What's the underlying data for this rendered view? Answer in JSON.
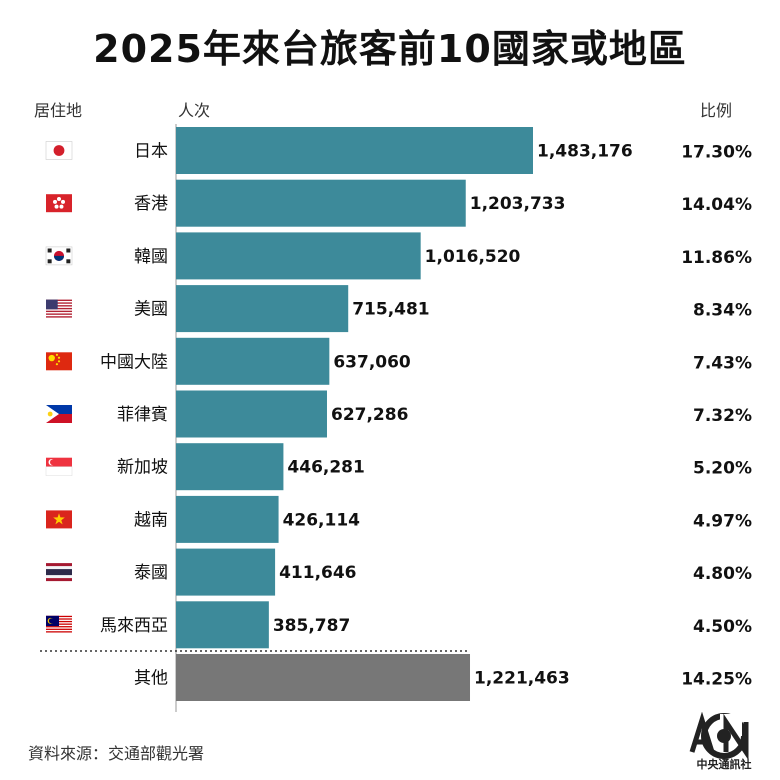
{
  "title": "2025年來台旅客前10國家或地區",
  "headers": {
    "country": "居住地",
    "count": "人次",
    "ratio": "比例"
  },
  "source": "資料來源：交通部觀光署",
  "logo_text": "中央通訊社",
  "colors": {
    "bar": "#3d8a9a",
    "other_bar": "#777777"
  },
  "chart_data": {
    "type": "bar",
    "orientation": "horizontal",
    "title": "2025年來台旅客前10國家或地區",
    "categories": [
      "日本",
      "香港",
      "韓國",
      "美國",
      "中國大陸",
      "菲律賓",
      "新加坡",
      "越南",
      "泰國",
      "馬來西亞",
      "其他"
    ],
    "values": [
      1483176,
      1203733,
      1016520,
      715481,
      637060,
      627286,
      446281,
      426114,
      411646,
      385787,
      1221463
    ],
    "value_labels": [
      "1,483,176",
      "1,203,733",
      "1,016,520",
      "715,481",
      "637,060",
      "627,286",
      "446,281",
      "426,114",
      "411,646",
      "385,787",
      "1,221,463"
    ],
    "ratios": [
      "17.30%",
      "14.04%",
      "11.86%",
      "8.34%",
      "7.43%",
      "7.32%",
      "5.20%",
      "4.97%",
      "4.80%",
      "4.50%",
      "14.25%"
    ],
    "flags": [
      "japan-flag",
      "hong-kong-flag",
      "south-korea-flag",
      "usa-flag",
      "china-flag",
      "philippines-flag",
      "singapore-flag",
      "vietnam-flag",
      "thailand-flag",
      "malaysia-flag",
      ""
    ],
    "xlim": [
      0,
      1483176
    ]
  }
}
